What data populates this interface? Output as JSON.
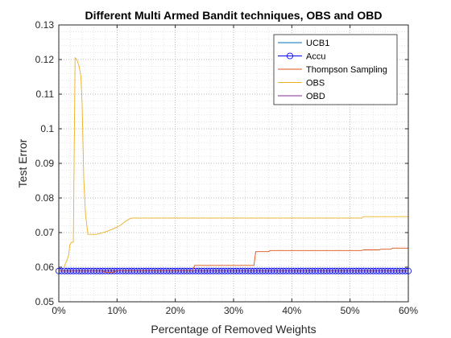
{
  "chart_data": {
    "type": "line",
    "title": "Different Multi Armed Bandit techniques, OBS and OBD",
    "xlabel": "Percentage of Removed Weights",
    "ylabel": "Test Error",
    "xlim": [
      0,
      60
    ],
    "ylim": [
      0.05,
      0.13
    ],
    "xticks": [
      0,
      10,
      20,
      30,
      40,
      50,
      60
    ],
    "xtick_labels": [
      "0%",
      "10%",
      "20%",
      "30%",
      "40%",
      "50%",
      "60%"
    ],
    "yticks": [
      0.05,
      0.06,
      0.07,
      0.08,
      0.09,
      0.1,
      0.11,
      0.12,
      0.13
    ],
    "ytick_labels": [
      "0.05",
      "0.06",
      "0.07",
      "0.08",
      "0.09",
      "0.1",
      "0.11",
      "0.12",
      "0.13"
    ],
    "grid": "on (dotted, major and minor)",
    "legend_position": "top-right",
    "series": [
      {
        "name": "UCB1",
        "color": "#0072BD",
        "marker": "none",
        "points": [
          [
            0,
            0.0589
          ],
          [
            60,
            0.0589
          ]
        ]
      },
      {
        "name": "Accu",
        "color": "#0000FF",
        "marker": "circle",
        "marker_spacing": 0.5,
        "points": [
          [
            0,
            0.0589
          ],
          [
            60,
            0.0589
          ]
        ]
      },
      {
        "name": "Thompson Sampling",
        "color": "#D95319",
        "marker": "none",
        "points": [
          [
            0,
            0.0589
          ],
          [
            7.5,
            0.0589
          ],
          [
            8,
            0.0585
          ],
          [
            9.5,
            0.0585
          ],
          [
            10,
            0.059
          ],
          [
            23,
            0.059
          ],
          [
            23.3,
            0.0605
          ],
          [
            33.5,
            0.0605
          ],
          [
            33.8,
            0.0645
          ],
          [
            36,
            0.0645
          ],
          [
            36.3,
            0.0648
          ],
          [
            52,
            0.0648
          ],
          [
            52.3,
            0.065
          ],
          [
            55,
            0.065
          ],
          [
            55.3,
            0.0652
          ],
          [
            57,
            0.0652
          ],
          [
            57.3,
            0.0655
          ],
          [
            60,
            0.0655
          ]
        ]
      },
      {
        "name": "OBS",
        "color": "#EDB120",
        "marker": "none",
        "points": [
          [
            0,
            0.0589
          ],
          [
            0.8,
            0.0589
          ],
          [
            1.0,
            0.0605
          ],
          [
            1.4,
            0.062
          ],
          [
            1.7,
            0.0635
          ],
          [
            1.9,
            0.0665
          ],
          [
            2.2,
            0.0672
          ],
          [
            2.5,
            0.0672
          ],
          [
            2.8,
            0.1205
          ],
          [
            3.1,
            0.12
          ],
          [
            3.5,
            0.118
          ],
          [
            3.8,
            0.115
          ],
          [
            4.0,
            0.1075
          ],
          [
            4.3,
            0.085
          ],
          [
            4.6,
            0.075
          ],
          [
            5.0,
            0.0695
          ],
          [
            6.5,
            0.0695
          ],
          [
            8.0,
            0.0702
          ],
          [
            9.5,
            0.0712
          ],
          [
            10.5,
            0.072
          ],
          [
            11.5,
            0.0733
          ],
          [
            12.2,
            0.074
          ],
          [
            12.5,
            0.0742
          ],
          [
            52,
            0.0742
          ],
          [
            52.3,
            0.0746
          ],
          [
            60,
            0.0746
          ]
        ]
      },
      {
        "name": "OBD",
        "color": "#7E2F8E",
        "marker": "none",
        "points": [
          [
            0,
            0.0589
          ],
          [
            60,
            0.0589
          ]
        ]
      }
    ]
  }
}
